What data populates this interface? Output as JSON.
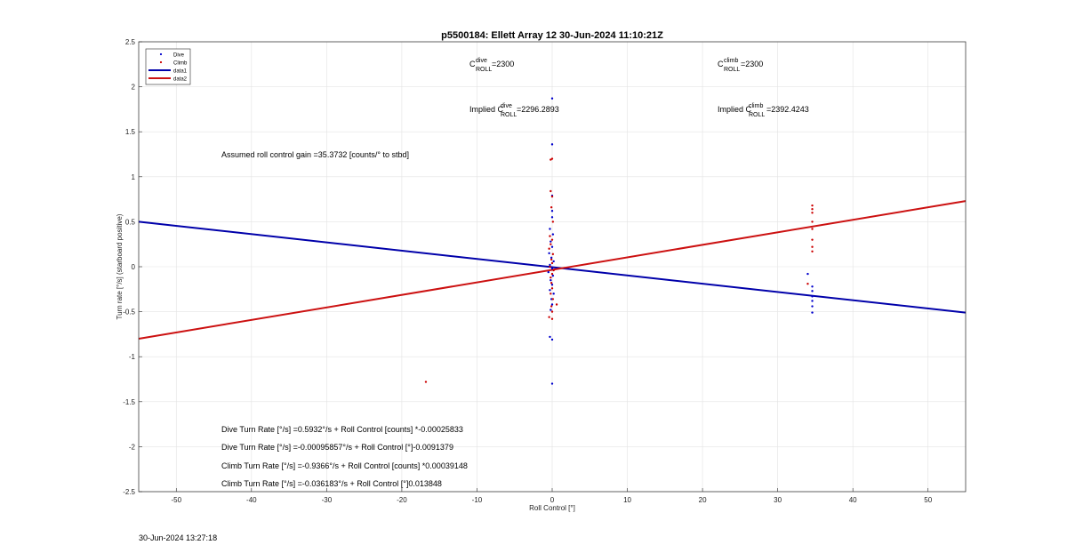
{
  "chart_data": {
    "type": "scatter",
    "title": "p5500184: Ellett Array 12 30-Jun-2024 11:10:21Z",
    "xlabel": "Roll Control [°]",
    "ylabel": "Turn rate [°/s] (starboard positive)",
    "xlim": [
      -55,
      55
    ],
    "ylim": [
      -2.5,
      2.5
    ],
    "xticks": [
      "-50",
      "-40",
      "-30",
      "-20",
      "-10",
      "0",
      "10",
      "20",
      "30",
      "40",
      "50"
    ],
    "yticks": [
      "2.5",
      "2",
      "1.5",
      "1",
      "0.5",
      "0",
      "-0.5",
      "-1",
      "-1.5",
      "-2",
      "-2.5"
    ],
    "grid": true,
    "legend": {
      "placement": "top-left",
      "entries": [
        {
          "label": "Dive",
          "marker": "point",
          "color": "#0000cc"
        },
        {
          "label": "Climb",
          "marker": "point",
          "color": "#cc0000"
        },
        {
          "label": "data1",
          "marker": "line",
          "color": "#0000aa"
        },
        {
          "label": "data2",
          "marker": "line",
          "color": "#cc1111"
        }
      ]
    },
    "series": [
      {
        "name": "Dive",
        "color": "#0000cc",
        "points": [
          [
            0.0,
            1.87
          ],
          [
            0.0,
            1.36
          ],
          [
            0.0,
            0.79
          ],
          [
            0.0,
            0.62
          ],
          [
            0.0,
            0.55
          ],
          [
            -0.3,
            0.42
          ],
          [
            0.1,
            0.36
          ],
          [
            -0.2,
            0.28
          ],
          [
            0.0,
            0.22
          ],
          [
            -0.4,
            0.15
          ],
          [
            -0.1,
            0.1
          ],
          [
            0.2,
            0.06
          ],
          [
            -0.3,
            0.02
          ],
          [
            0.0,
            -0.02
          ],
          [
            -0.5,
            -0.06
          ],
          [
            0.1,
            -0.1
          ],
          [
            -0.2,
            -0.15
          ],
          [
            0.0,
            -0.2
          ],
          [
            -0.3,
            -0.26
          ],
          [
            0.2,
            -0.3
          ],
          [
            -0.1,
            -0.36
          ],
          [
            0.0,
            -0.42
          ],
          [
            -0.2,
            -0.48
          ],
          [
            -0.3,
            -0.78
          ],
          [
            0.0,
            -0.81
          ],
          [
            0.0,
            -1.3
          ],
          [
            34.0,
            -0.08
          ],
          [
            34.6,
            -0.22
          ],
          [
            34.6,
            -0.27
          ],
          [
            34.6,
            -0.33
          ],
          [
            34.6,
            -0.38
          ],
          [
            34.6,
            -0.44
          ],
          [
            34.6,
            -0.51
          ]
        ]
      },
      {
        "name": "Climb",
        "color": "#cc0000",
        "points": [
          [
            0.0,
            1.2
          ],
          [
            -0.2,
            1.19
          ],
          [
            -0.2,
            0.84
          ],
          [
            0.0,
            0.78
          ],
          [
            -0.1,
            0.66
          ],
          [
            0.1,
            0.5
          ],
          [
            -0.3,
            0.34
          ],
          [
            0.0,
            0.3
          ],
          [
            -0.2,
            0.25
          ],
          [
            -0.4,
            0.2
          ],
          [
            0.1,
            0.14
          ],
          [
            -0.1,
            0.08
          ],
          [
            0.0,
            0.04
          ],
          [
            -0.3,
            0.0
          ],
          [
            0.2,
            -0.04
          ],
          [
            0.0,
            -0.08
          ],
          [
            -0.2,
            -0.12
          ],
          [
            -0.1,
            -0.18
          ],
          [
            0.0,
            -0.24
          ],
          [
            -0.2,
            -0.3
          ],
          [
            0.1,
            -0.36
          ],
          [
            -0.1,
            -0.44
          ],
          [
            0.0,
            -0.5
          ],
          [
            -0.4,
            -0.56
          ],
          [
            0.0,
            -0.58
          ],
          [
            0.6,
            -0.42
          ],
          [
            -16.8,
            -1.28
          ],
          [
            34.0,
            -0.19
          ],
          [
            34.6,
            0.17
          ],
          [
            34.6,
            0.22
          ],
          [
            34.6,
            0.3
          ],
          [
            34.6,
            0.42
          ],
          [
            34.6,
            0.5
          ],
          [
            34.6,
            0.6
          ],
          [
            34.6,
            0.64
          ],
          [
            34.6,
            0.68
          ]
        ]
      },
      {
        "name": "data1",
        "color": "#0000aa",
        "type": "line",
        "points": [
          [
            -55,
            0.5
          ],
          [
            55,
            -0.51
          ]
        ]
      },
      {
        "name": "data2",
        "color": "#cc1111",
        "type": "line",
        "points": [
          [
            -55,
            -0.8
          ],
          [
            55,
            0.73
          ]
        ]
      }
    ],
    "annotations": {
      "c_dive": {
        "base": "C",
        "sup": "dive",
        "sub": "ROLL",
        "value": " =2300"
      },
      "c_climb": {
        "base": "C",
        "sup": "climb",
        "sub": "ROLL",
        "value": " =2300"
      },
      "implied_dive": {
        "prefix": "Implied C",
        "sup": "dive",
        "sub": "ROLL",
        "value": " =2296.2893"
      },
      "implied_climb": {
        "prefix": "Implied C",
        "sup": "climb",
        "sub": "ROLL",
        "value": " =2392.4243"
      },
      "gain": "Assumed roll control gain =35.3732 [counts/° to stbd]",
      "fit_lines": [
        "Dive Turn Rate [°/s] =0.5932°/s + Roll Control [counts] *-0.00025833",
        "Dive Turn Rate [°/s] =-0.00095857°/s + Roll Control [°]-0.0091379",
        "Climb Turn Rate [°/s] =-0.9366°/s + Roll Control [counts] *0.00039148",
        "Climb Turn Rate [°/s] =-0.036183°/s + Roll Control [°]0.013848"
      ]
    }
  },
  "footer": {
    "generated": "30-Jun-2024 13:27:18"
  }
}
